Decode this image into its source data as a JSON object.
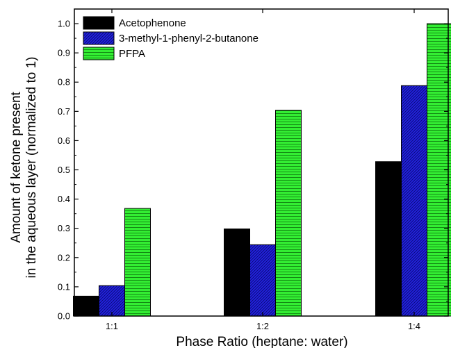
{
  "chart_data": {
    "type": "bar",
    "categories": [
      "1:1",
      "1:2",
      "1:4"
    ],
    "series": [
      {
        "name": "Acetophenone",
        "values": [
          0.068,
          0.298,
          0.528
        ],
        "color": "#000000",
        "pattern": "solid"
      },
      {
        "name": "3-methyl-1-phenyl-2-butanone",
        "values": [
          0.104,
          0.244,
          0.788
        ],
        "color": "#1c1cd8",
        "pattern": "diagonal-hatch"
      },
      {
        "name": "PFPA",
        "values": [
          0.368,
          0.704,
          1.0
        ],
        "color": "#2ee82e",
        "pattern": "horizontal-lines"
      }
    ],
    "xlabel": "Phase Ratio (heptane: water)",
    "ylabel_lines": [
      "Amount of ketone present",
      "in the aqueous layer (normalized to 1)"
    ],
    "ylim": [
      0.0,
      1.05
    ],
    "yticks": [
      "0.0",
      "0.1",
      "0.2",
      "0.3",
      "0.4",
      "0.5",
      "0.6",
      "0.7",
      "0.8",
      "0.9",
      "1.0"
    ],
    "grid": false,
    "legend_position": "top-left"
  }
}
